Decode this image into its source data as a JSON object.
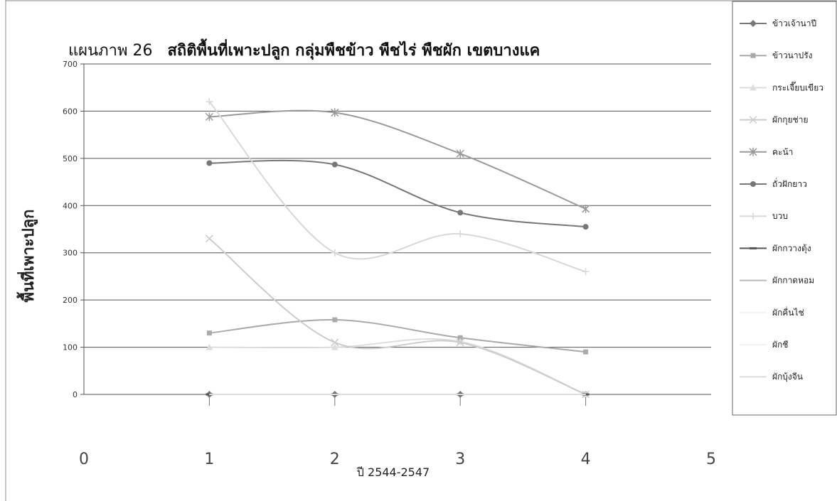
{
  "chart_data": {
    "type": "line",
    "title_prefix": "แผนภาพ 26",
    "title": "สถิติพื้นที่เพาะปลูก กลุ่มพืชข้าว พืชไร่ พืชผัก เขตบางแค",
    "xlabel": "ปี 2544-2547",
    "ylabel": "พื้นที่เพาะปลูก",
    "xlim": [
      0,
      5
    ],
    "ylim": [
      0,
      700
    ],
    "xticks": [
      "0",
      "1",
      "2",
      "3",
      "4",
      "5"
    ],
    "yticks": [
      "0",
      "100",
      "200",
      "300",
      "400",
      "500",
      "600",
      "700"
    ],
    "grid": true,
    "legend_position": "right",
    "x": [
      1,
      2,
      3,
      4
    ],
    "series": [
      {
        "name": "ข้าวเจ้านาปี",
        "marker": "diamond",
        "color": "#777777",
        "values": [
          0,
          0,
          0,
          0
        ]
      },
      {
        "name": "ข้าวนาปรัง",
        "marker": "square",
        "color": "#aaaaaa",
        "values": [
          130,
          158,
          120,
          90
        ]
      },
      {
        "name": "กระเจี๊ยบเขียว",
        "marker": "triangle",
        "color": "#dddddd",
        "values": [
          100,
          100,
          112,
          0
        ]
      },
      {
        "name": "ผักกุยช่าย",
        "marker": "x",
        "color": "#cccccc",
        "values": [
          330,
          110,
          110,
          0
        ]
      },
      {
        "name": "คะน้า",
        "marker": "star",
        "color": "#999999",
        "values": [
          588,
          597,
          510,
          393
        ]
      },
      {
        "name": "ถั่วฝักยาว",
        "marker": "circle",
        "color": "#777777",
        "values": [
          490,
          487,
          385,
          355
        ]
      },
      {
        "name": "บวบ",
        "marker": "plus",
        "color": "#d8d8d8",
        "values": [
          620,
          300,
          340,
          260
        ]
      },
      {
        "name": "ผักกวางตุ้ง",
        "marker": "dash",
        "color": "#555555",
        "values": [
          0,
          0,
          0,
          0
        ]
      },
      {
        "name": "ผักกาดหอม",
        "marker": "line",
        "color": "#bbbbbb",
        "values": [
          0,
          0,
          0,
          0
        ]
      },
      {
        "name": "ผักคื่นไช่",
        "marker": "none",
        "color": "#f2f2f2",
        "values": [
          0,
          0,
          0,
          0
        ]
      },
      {
        "name": "ผักชี",
        "marker": "none",
        "color": "#f2f2f2",
        "values": [
          0,
          0,
          0,
          0
        ]
      },
      {
        "name": "ผักบุ้งจีน",
        "marker": "line",
        "color": "#dddddd",
        "values": [
          0,
          0,
          0,
          0
        ]
      }
    ]
  }
}
